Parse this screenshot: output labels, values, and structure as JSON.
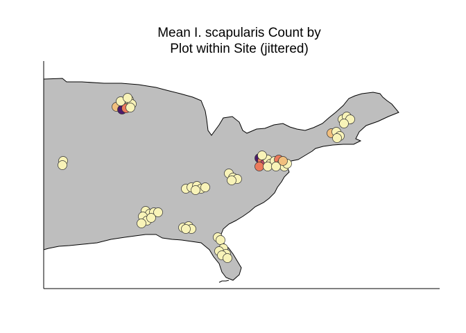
{
  "title": {
    "line1": "Mean I. scapularis Count by",
    "line2": "Plot within Site (jittered)"
  },
  "colors": {
    "land_fill": "#bebebe",
    "land_stroke": "#000000",
    "point_stroke": "#333333",
    "low": "#f8f3b8",
    "mid_low": "#f1bf7e",
    "mid": "#ec7a5c",
    "mid_high": "#c24a6b",
    "high": "#4b1a6b"
  },
  "map_layers": [
    "axis-left",
    "axis-bottom",
    "land-east-us",
    "site-points"
  ]
}
